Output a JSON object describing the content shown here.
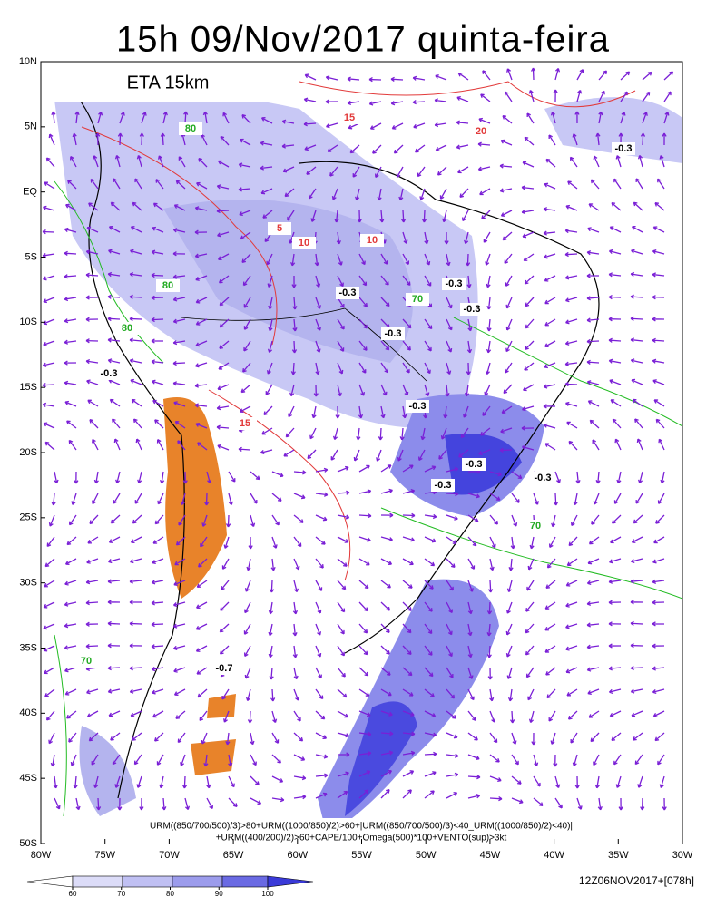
{
  "title": "15h 09/Nov/2017 quinta-feira",
  "model": "ETA 15km",
  "lat_labels": [
    "10N",
    "5N",
    "EQ",
    "5S",
    "10S",
    "15S",
    "20S",
    "25S",
    "30S",
    "35S",
    "40S",
    "45S",
    "50S"
  ],
  "lon_labels": [
    "80W",
    "75W",
    "70W",
    "65W",
    "60W",
    "55W",
    "50W",
    "45W",
    "40W",
    "35W",
    "30W"
  ],
  "legend_lines": [
    "URM((850/700/500)/3)>80+URM((1000/850)/2)>60+|URM((850/700/500)/3)<40_URM((1000/850)/2)<40)|",
    "+URM((400/200)/2)>60+CAPE/100+Omega(500)*100+VENTO(sup)>3kt"
  ],
  "colorbar": {
    "ticks": [
      60,
      70,
      80,
      90,
      100
    ]
  },
  "run": "12Z06NOV2017+[078h]",
  "contour_labels": [
    "-0.3",
    "-0.3",
    "-0.3",
    "-0.3",
    "-0.3",
    "-0.3",
    "-0.3",
    "-0.3",
    "-0.3",
    "-0.3",
    "-0.7",
    "80",
    "80",
    "80",
    "70",
    "70",
    "70",
    "15",
    "15",
    "10",
    "10",
    "5",
    "20"
  ]
}
